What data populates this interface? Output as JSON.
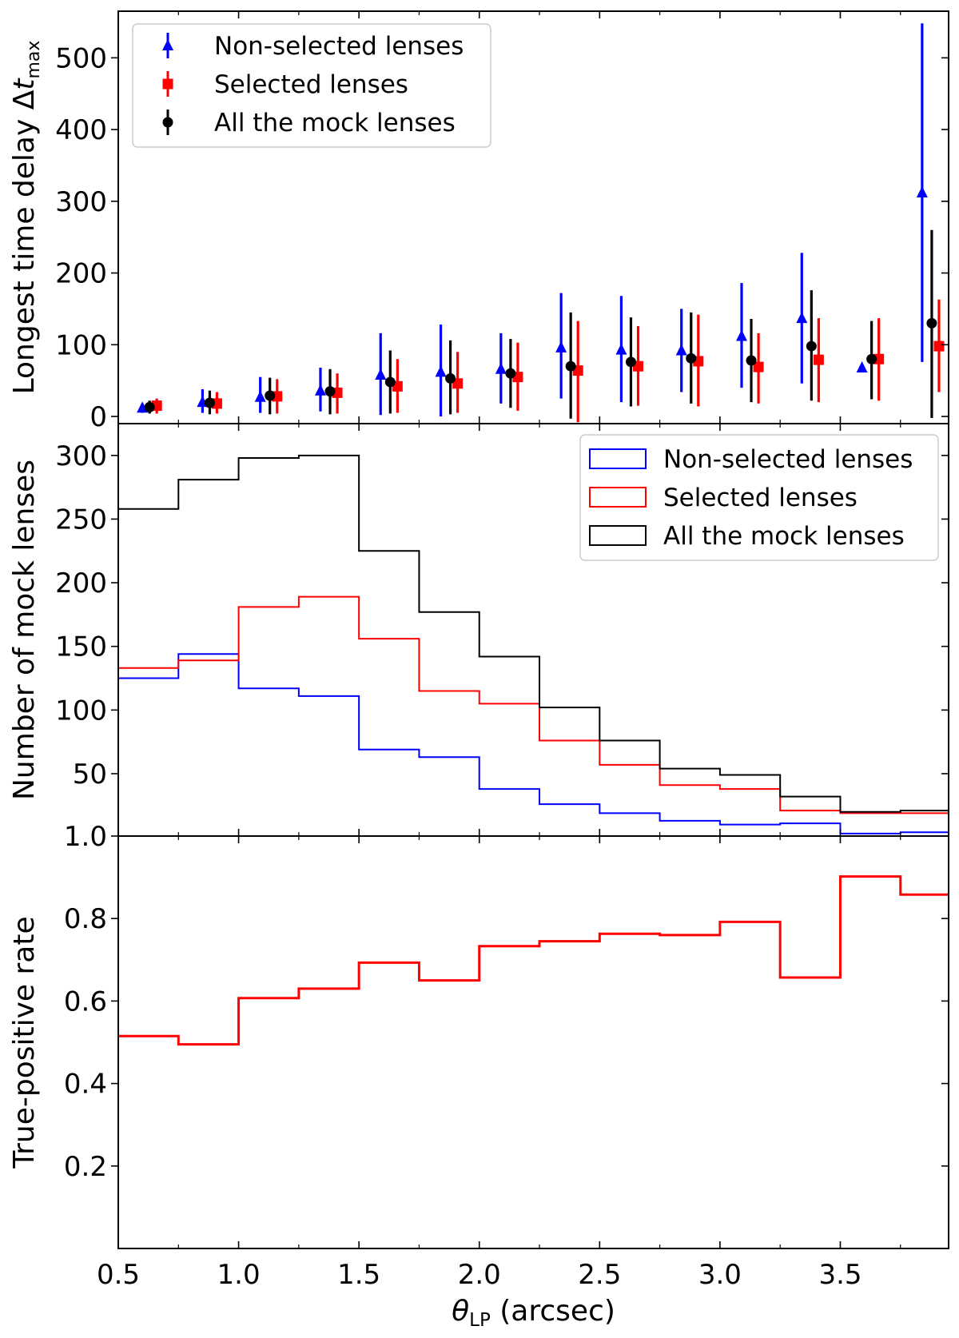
{
  "figure": {
    "xlabel": {
      "symbol": "θ",
      "sub": "LP",
      "unit": " (arcsec)"
    },
    "xlim": [
      0.5,
      3.95
    ],
    "xticks": [
      "0.5",
      "1.0",
      "1.5",
      "2.0",
      "2.5",
      "3.0",
      "3.5"
    ],
    "xtick_values": [
      0.5,
      1.0,
      1.5,
      2.0,
      2.5,
      3.0,
      3.5
    ],
    "xminor_values": [
      0.75,
      1.25,
      1.75,
      2.25,
      2.75,
      3.25,
      3.75
    ]
  },
  "chart_data": [
    {
      "type": "scatter",
      "panel": "top",
      "ylabel": {
        "text": "Longest time delay Δ",
        "italic": "t",
        "sub": "max"
      },
      "ylim": [
        -10,
        565
      ],
      "yticks": [
        "0",
        "100",
        "200",
        "300",
        "400",
        "500"
      ],
      "ytick_values": [
        0,
        100,
        200,
        300,
        400,
        500
      ],
      "legend_position": "top-left",
      "series": [
        {
          "name": "Non-selected lenses",
          "color": "#0000ff",
          "marker": "triangle",
          "x": [
            0.6,
            0.85,
            1.09,
            1.34,
            1.59,
            1.84,
            2.09,
            2.34,
            2.59,
            2.84,
            3.09,
            3.34,
            3.59,
            3.84
          ],
          "y": [
            12,
            20,
            27,
            36,
            58,
            62,
            66,
            96,
            93,
            92,
            112,
            137,
            68,
            312
          ],
          "err_low": [
            5,
            5,
            5,
            7,
            2,
            0,
            18,
            25,
            20,
            34,
            40,
            46,
            66,
            76
          ],
          "err_high": [
            18,
            38,
            55,
            68,
            116,
            128,
            116,
            172,
            168,
            150,
            186,
            228,
            70,
            548
          ]
        },
        {
          "name": "Selected lenses",
          "color": "#ff0000",
          "marker": "square",
          "x": [
            0.66,
            0.91,
            1.16,
            1.41,
            1.66,
            1.91,
            2.16,
            2.41,
            2.66,
            2.91,
            3.16,
            3.41,
            3.66,
            3.91
          ],
          "y": [
            15,
            18,
            28,
            33,
            42,
            46,
            55,
            64,
            70,
            77,
            69,
            79,
            80,
            98
          ],
          "err_low": [
            4,
            4,
            4,
            4,
            5,
            5,
            8,
            -8,
            15,
            14,
            18,
            20,
            22,
            34
          ],
          "err_high": [
            25,
            34,
            52,
            60,
            80,
            90,
            103,
            133,
            126,
            142,
            116,
            137,
            137,
            163
          ]
        },
        {
          "name": "All the mock lenses",
          "color": "#000000",
          "marker": "circle",
          "x": [
            0.63,
            0.88,
            1.13,
            1.38,
            1.63,
            1.88,
            2.13,
            2.38,
            2.63,
            2.88,
            3.13,
            3.38,
            3.63,
            3.88
          ],
          "y": [
            13,
            19,
            29,
            35,
            48,
            53,
            60,
            70,
            76,
            81,
            78,
            98,
            80,
            130
          ],
          "err_low": [
            4,
            3,
            3,
            3,
            4,
            3,
            12,
            -3,
            14,
            18,
            20,
            22,
            24,
            -2
          ],
          "err_high": [
            22,
            36,
            54,
            66,
            92,
            106,
            108,
            145,
            138,
            145,
            136,
            176,
            133,
            260
          ]
        }
      ]
    },
    {
      "type": "step",
      "panel": "middle",
      "ylabel": {
        "text": "Number of mock lenses"
      },
      "ylim": [
        1,
        325
      ],
      "yticks": [
        "50",
        "100",
        "150",
        "200",
        "250",
        "300"
      ],
      "ytick_values": [
        50,
        100,
        150,
        200,
        250,
        300
      ],
      "legend_position": "top-right",
      "bin_edges": [
        0.5,
        0.75,
        1.0,
        1.25,
        1.5,
        1.75,
        2.0,
        2.25,
        2.5,
        2.75,
        3.0,
        3.25,
        3.5,
        3.75,
        4.0
      ],
      "series": [
        {
          "name": "Non-selected lenses",
          "color": "#0000ff",
          "values": [
            125,
            144,
            117,
            111,
            69,
            63,
            38,
            26,
            19,
            13,
            10,
            11,
            3,
            4
          ]
        },
        {
          "name": "Selected lenses",
          "color": "#ff0000",
          "values": [
            133,
            139,
            181,
            189,
            156,
            115,
            105,
            76,
            57,
            41,
            38,
            21,
            19,
            19
          ]
        },
        {
          "name": "All the mock lenses",
          "color": "#000000",
          "values": [
            258,
            281,
            298,
            300,
            225,
            177,
            142,
            102,
            76,
            54,
            49,
            32,
            20,
            21
          ]
        }
      ]
    },
    {
      "type": "step",
      "panel": "bottom",
      "ylabel": {
        "text": "True-positive rate"
      },
      "ylim": [
        0,
        1.0
      ],
      "yticks": [
        "0.2",
        "0.4",
        "0.6",
        "0.8",
        "1.0"
      ],
      "ytick_values": [
        0.2,
        0.4,
        0.6,
        0.8,
        1.0
      ],
      "bin_edges": [
        0.5,
        0.75,
        1.0,
        1.25,
        1.5,
        1.75,
        2.0,
        2.25,
        2.5,
        2.75,
        3.0,
        3.25,
        3.5,
        3.75,
        4.0
      ],
      "series": [
        {
          "name": "True-positive rate",
          "color": "#ff0000",
          "values": [
            0.515,
            0.495,
            0.607,
            0.63,
            0.693,
            0.65,
            0.733,
            0.745,
            0.763,
            0.76,
            0.792,
            0.657,
            0.902,
            0.858
          ]
        }
      ]
    }
  ]
}
